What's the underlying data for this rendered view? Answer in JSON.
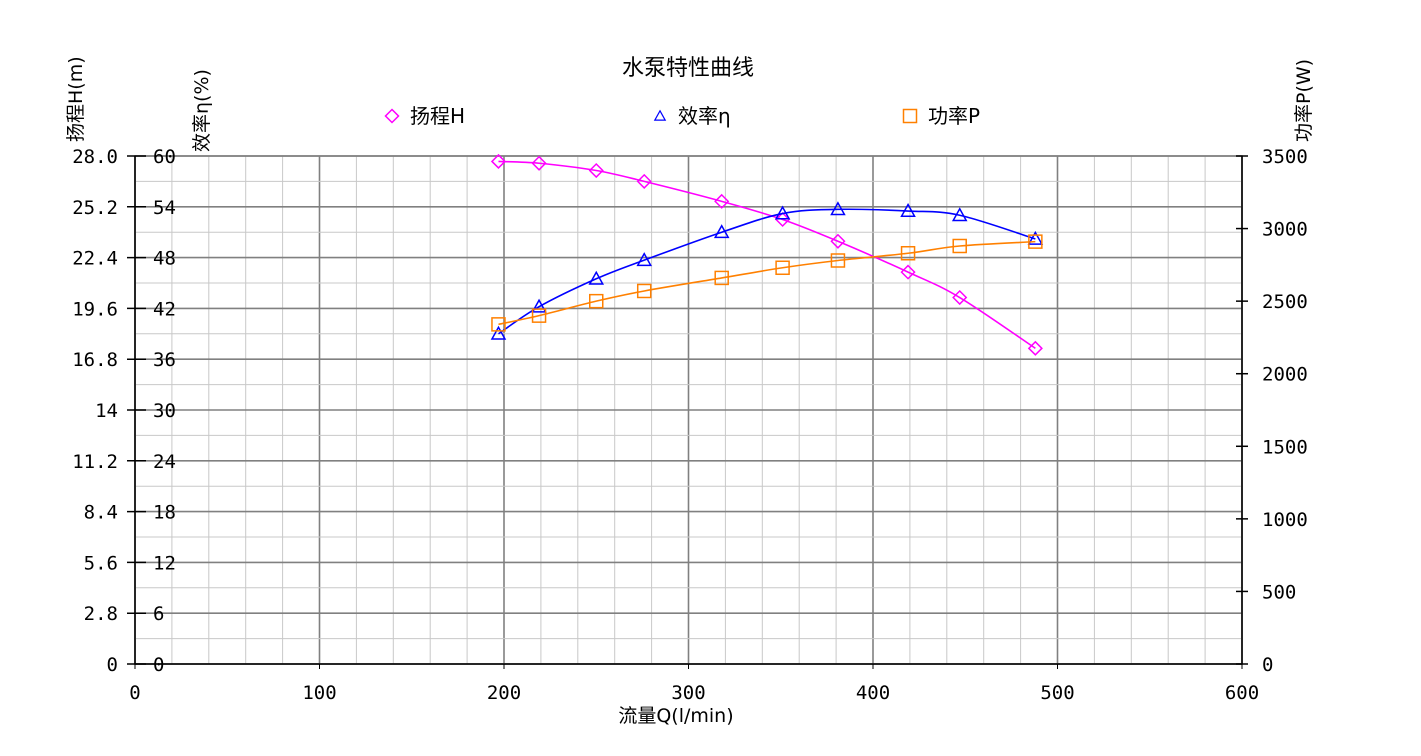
{
  "chart_data": {
    "type": "line",
    "title": "水泵特性曲线",
    "xlabel": "流量Q(l/min)",
    "xlim": [
      0,
      600
    ],
    "x_ticks": [
      "0",
      "100",
      "200",
      "300",
      "400",
      "500",
      "600"
    ],
    "axes": {
      "head": {
        "label": "扬程H(m)",
        "range": [
          0,
          28
        ],
        "ticks": [
          "0",
          "2.8",
          "5.6",
          "8.4",
          "11.2",
          "14",
          "16.8",
          "19.6",
          "22.4",
          "25.2",
          "28.0"
        ]
      },
      "efficiency": {
        "label": "效率η(%)",
        "range": [
          0,
          60
        ],
        "ticks": [
          "0",
          "6",
          "12",
          "18",
          "24",
          "30",
          "36",
          "42",
          "48",
          "54",
          "60"
        ]
      },
      "power": {
        "label": "功率P(W)",
        "range": [
          0,
          3500
        ],
        "ticks": [
          "0",
          "500",
          "1000",
          "1500",
          "2000",
          "2500",
          "3000",
          "3500"
        ]
      }
    },
    "grid": true,
    "legend_position": "top",
    "series": [
      {
        "name": "扬程H",
        "axis": "head",
        "marker": "diamond",
        "color": "#ff00ff",
        "x": [
          197,
          219,
          250,
          276,
          318,
          351,
          381,
          419,
          447,
          488
        ],
        "y": [
          27.7,
          27.6,
          27.2,
          26.6,
          25.5,
          24.5,
          23.3,
          21.6,
          20.2,
          17.4
        ]
      },
      {
        "name": "效率η",
        "axis": "efficiency",
        "marker": "triangle",
        "color": "#0000ff",
        "x": [
          197,
          219,
          250,
          276,
          318,
          351,
          381,
          419,
          447,
          488
        ],
        "y": [
          39.0,
          42.2,
          45.5,
          47.7,
          51.0,
          53.2,
          53.7,
          53.5,
          53.0,
          50.2
        ]
      },
      {
        "name": "功率P",
        "axis": "power",
        "marker": "square",
        "color": "#ff8000",
        "x": [
          197,
          219,
          250,
          276,
          318,
          351,
          381,
          419,
          447,
          488
        ],
        "y": [
          2340,
          2400,
          2500,
          2570,
          2660,
          2730,
          2780,
          2830,
          2880,
          2910
        ]
      }
    ]
  }
}
